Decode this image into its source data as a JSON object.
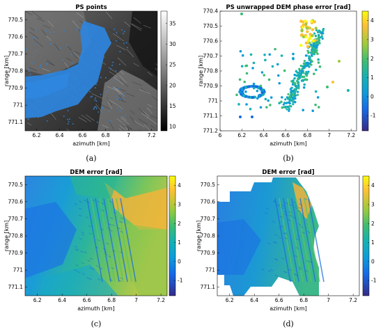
{
  "chart_data": [
    {
      "panel": "(a)",
      "type": "scatter",
      "title": "PS points",
      "xlabel": "azimuth [km]",
      "ylabel": "range [km]",
      "xticks": [
        "6.2",
        "6.4",
        "6.6",
        "6.8",
        "7",
        "7.2"
      ],
      "yticks": [
        "770.5",
        "770.6",
        "770.7",
        "770.8",
        "770.9",
        "771",
        "771.1"
      ],
      "xlim": [
        6.1,
        7.25
      ],
      "ylim": [
        770.45,
        771.15
      ],
      "y_reversed": true,
      "grid": false,
      "background": "grayscale SAR amplitude image",
      "point_color": "#2e86de",
      "colorbar": {
        "ticks": [
          "35",
          "30",
          "25",
          "20",
          "15",
          "10"
        ],
        "range": [
          9,
          38
        ],
        "colormap": "gray"
      }
    },
    {
      "panel": "(b)",
      "type": "scatter",
      "title": "PS unwrapped DEM phase error [rad]",
      "xlabel": "azimuth [km]",
      "ylabel": "range [km]",
      "xticks": [
        "6",
        "6.2",
        "6.4",
        "6.6",
        "6.8",
        "7",
        "7.2"
      ],
      "yticks": [
        "770.4",
        "770.5",
        "770.6",
        "770.7",
        "770.8",
        "770.9",
        "771",
        "771.1",
        "771.2"
      ],
      "xlim": [
        6.0,
        7.25
      ],
      "ylim": [
        770.4,
        771.2
      ],
      "y_reversed": true,
      "grid": false,
      "colorbar": {
        "ticks": [
          "4",
          "3",
          "2",
          "1",
          "0",
          "-1"
        ],
        "range": [
          -1.8,
          4.5
        ],
        "colormap": "parula"
      }
    },
    {
      "panel": "(c)",
      "type": "heatmap",
      "title": "DEM error [rad]",
      "xlabel": "azimuth [km]",
      "ylabel": "range [km]",
      "xticks": [
        "6.2",
        "6.4",
        "6.6",
        "6.8",
        "7",
        "7.2"
      ],
      "yticks": [
        "770.5",
        "770.6",
        "770.7",
        "770.8",
        "770.9",
        "771",
        "771.1"
      ],
      "xlim": [
        6.1,
        7.25
      ],
      "ylim": [
        770.45,
        771.15
      ],
      "y_reversed": true,
      "grid": false,
      "colorbar": {
        "ticks": [
          "4",
          "3",
          "2",
          "1",
          "0",
          "-1"
        ],
        "range": [
          -1.8,
          4.5
        ],
        "colormap": "parula"
      }
    },
    {
      "panel": "(d)",
      "type": "heatmap",
      "title": "DEM error [rad]",
      "xlabel": "azimuth [km]",
      "ylabel": "range [km]",
      "xticks": [
        "6.2",
        "6.4",
        "6.6",
        "6.8",
        "7",
        "7.2"
      ],
      "yticks": [
        "770.5",
        "770.6",
        "770.7",
        "770.8",
        "770.9",
        "771",
        "771.1"
      ],
      "xlim": [
        6.1,
        7.25
      ],
      "ylim": [
        770.45,
        771.15
      ],
      "y_reversed": true,
      "grid": false,
      "colorbar": {
        "ticks": [
          "4",
          "3",
          "2",
          "1",
          "0",
          "-1"
        ],
        "range": [
          -1.8,
          4.5
        ],
        "colormap": "parula"
      }
    }
  ]
}
